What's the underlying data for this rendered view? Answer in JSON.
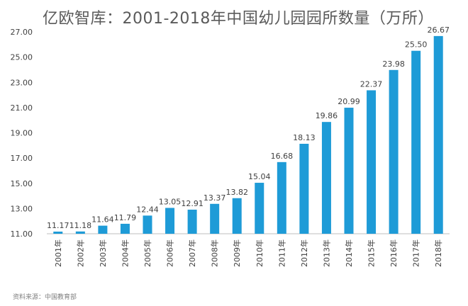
{
  "title": "亿欧智库：2001-2018年中国幼儿园园所数量（万所）",
  "source": "资料来源：中国教育部",
  "colors": {
    "bar": "#1e9bd7",
    "axis": "#bfbfbf",
    "text": "#404040"
  },
  "chart_data": {
    "type": "bar",
    "categories": [
      "2001年",
      "2002年",
      "2003年",
      "2004年",
      "2005年",
      "2006年",
      "2007年",
      "2008年",
      "2009年",
      "2010年",
      "2011年",
      "2012年",
      "2013年",
      "2014年",
      "2015年",
      "2016年",
      "2017年",
      "2018年"
    ],
    "series": [
      {
        "values": [
          11.17,
          11.18,
          11.64,
          11.79,
          12.44,
          13.05,
          12.91,
          13.37,
          13.82,
          15.04,
          16.68,
          18.13,
          19.86,
          20.99,
          22.37,
          23.98,
          25.5,
          26.67
        ]
      }
    ],
    "data_labels": [
      "11.17",
      "11.18",
      "11.64",
      "11.79",
      "12.44",
      "13.05",
      "12.91",
      "13.37",
      "13.82",
      "15.04",
      "16.68",
      "18.13",
      "19.86",
      "20.99",
      "22.37",
      "23.98",
      "25.50",
      "26.67"
    ],
    "yticks": [
      "11.00",
      "13.00",
      "15.00",
      "17.00",
      "19.00",
      "21.00",
      "23.00",
      "25.00",
      "27.00"
    ],
    "ylim": [
      11,
      27
    ],
    "grid": false,
    "legend": "none"
  }
}
